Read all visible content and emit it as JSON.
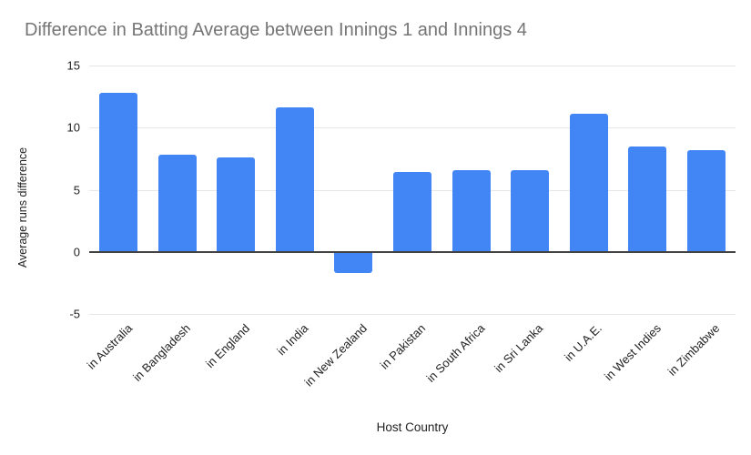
{
  "chart_data": {
    "type": "bar",
    "title": "Difference in Batting Average between Innings 1 and Innings 4",
    "xlabel": "Host Country",
    "ylabel": "Average runs difference",
    "categories": [
      "in Australia",
      "in Bangladesh",
      "in England",
      "in India",
      "in New Zealand",
      "in Pakistan",
      "in South Africa",
      "in Sri Lanka",
      "in U.A.E.",
      "in West Indies",
      "in Zimbabwe"
    ],
    "values": [
      12.8,
      7.8,
      7.6,
      11.6,
      -1.7,
      6.4,
      6.6,
      6.6,
      11.1,
      8.5,
      8.2
    ],
    "ylim": [
      -5,
      15
    ],
    "yticks": [
      15,
      10,
      5,
      0,
      -5
    ],
    "grid": true,
    "legend": "none"
  },
  "colors": {
    "bar": "#4285f4",
    "title_text": "#757575",
    "axis_text": "#222222",
    "gridline": "#e6e6e6",
    "zero_line": "#424242",
    "background": "#ffffff"
  }
}
